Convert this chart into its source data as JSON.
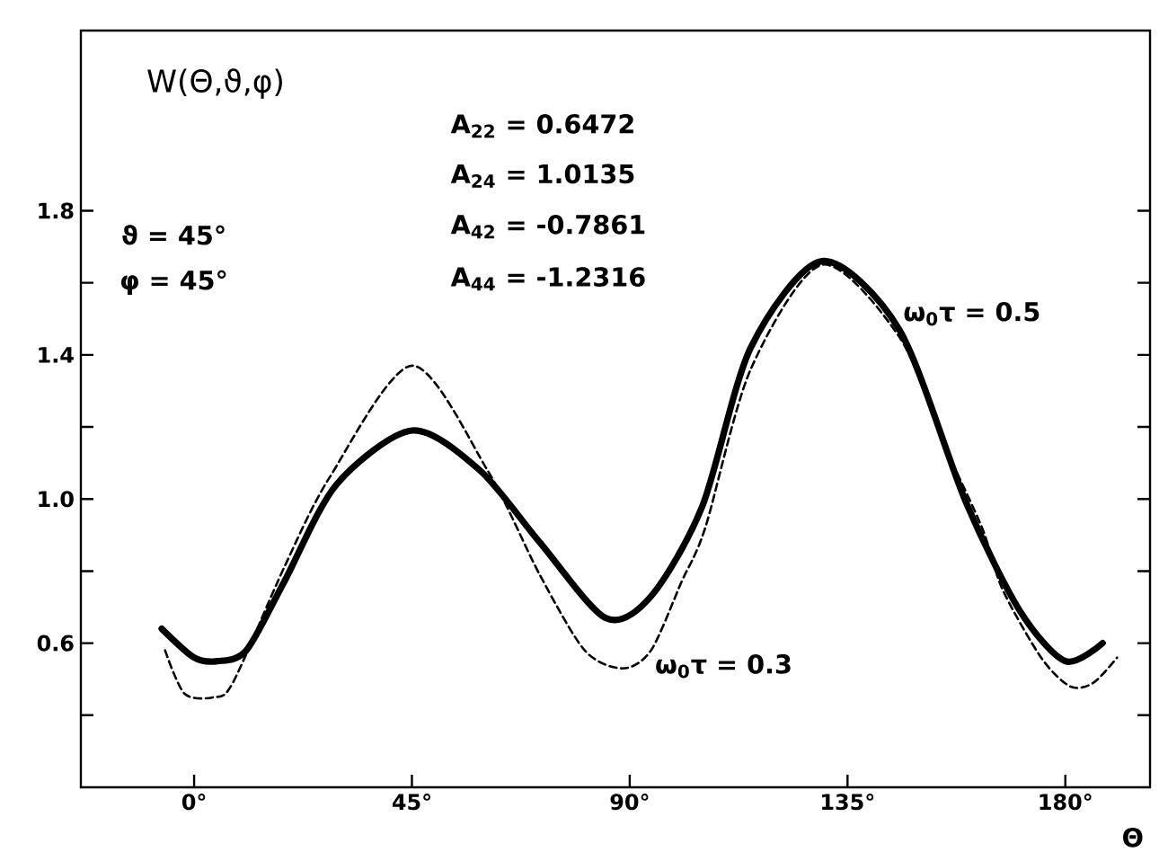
{
  "chart_data": {
    "type": "line",
    "ylabel": "W(Θ,ϑ,φ)",
    "xlabel": "Θ",
    "annotations": [
      "ϑ = 45°",
      "φ = 45°",
      "A$_{22}$ =  0.6472",
      "A$_{24}$ =  1.0135",
      "A$_{42}$ = -0.7861",
      "A$_{44}$ = -1.2316"
    ],
    "series": [
      {
        "name": "ω$_{0}$τ = 0.5",
        "color": "#000000",
        "line_style": "solid",
        "x": [
          -6.7,
          0,
          4.8,
          10.8,
          18.6,
          29.4,
          45,
          59,
          71.4,
          85,
          94.4,
          105,
          115,
          129.7,
          145.7,
          159.5,
          170.6,
          180,
          187.7
        ],
        "values": [
          0.64,
          0.56,
          0.55,
          0.58,
          0.77,
          1.04,
          1.19,
          1.08,
          0.88,
          0.67,
          0.73,
          0.98,
          1.42,
          1.66,
          1.47,
          0.99,
          0.69,
          0.55,
          0.6
        ]
      },
      {
        "name": "ω$_{0}$τ = 0.3",
        "color": "#000000",
        "line_style": "dashed",
        "x": [
          -6,
          -2,
          4,
          8,
          18.6,
          28,
          45,
          60.6,
          71.4,
          80.7,
          88.5,
          94.4,
          100.7,
          105.6,
          115,
          129.7,
          145.7,
          155,
          162.8,
          167,
          175,
          181,
          185.8,
          190.7
        ],
        "values": [
          0.58,
          0.46,
          0.45,
          0.49,
          0.81,
          1.06,
          1.37,
          1.08,
          0.79,
          0.58,
          0.53,
          0.58,
          0.77,
          0.92,
          1.36,
          1.65,
          1.45,
          1.15,
          0.92,
          0.75,
          0.56,
          0.48,
          0.49,
          0.56
        ]
      }
    ],
    "xlim": [
      -23.4,
      197.5
    ],
    "ylim": [
      0.2,
      2.3
    ],
    "xticks": [
      {
        "value": 0,
        "label": "0°"
      },
      {
        "value": 45,
        "label": "45°"
      },
      {
        "value": 90,
        "label": "90°"
      },
      {
        "value": 135,
        "label": "135°"
      },
      {
        "value": 180,
        "label": "180°"
      }
    ],
    "yticks": [
      {
        "value": 0.4,
        "label": null
      },
      0.6,
      {
        "value": 0.8,
        "label": null
      },
      {
        "value": 1,
        "label": "1.0"
      },
      {
        "value": 1.2,
        "label": null
      },
      1.4,
      {
        "value": 1.6,
        "label": null
      },
      1.8
    ],
    "grid": false,
    "legend": false,
    "marker": "none"
  }
}
